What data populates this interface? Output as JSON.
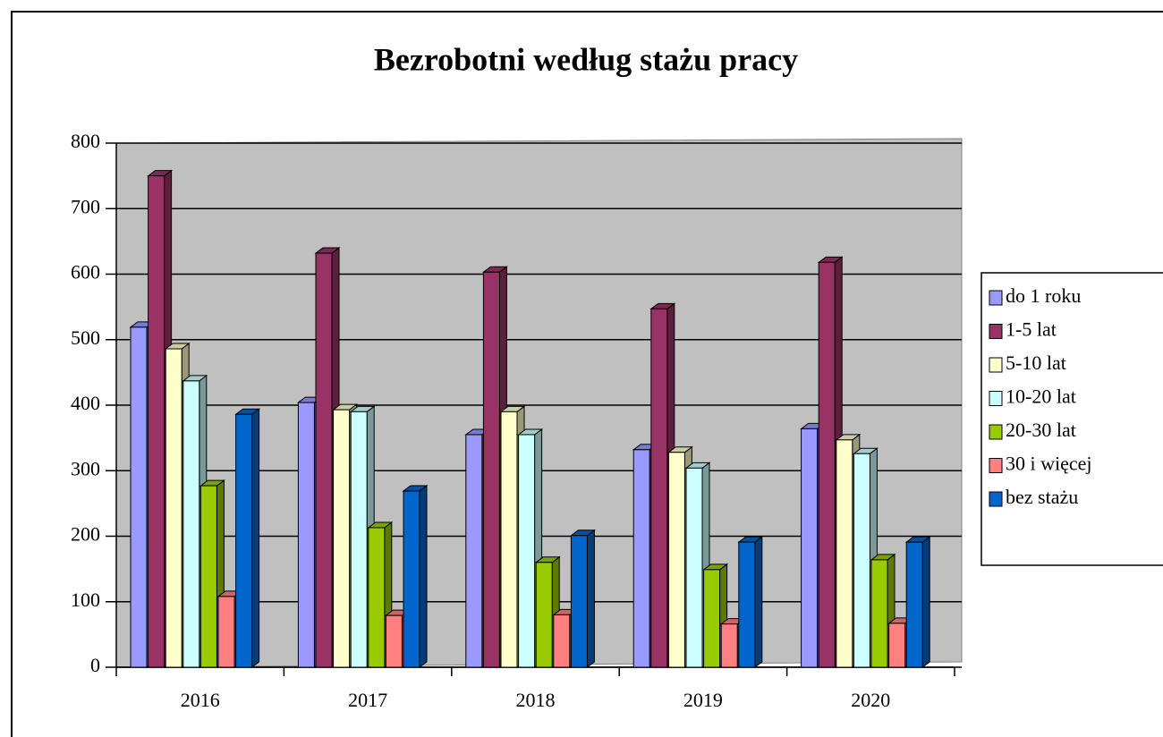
{
  "chart_data": {
    "type": "bar3d",
    "title": "Bezrobotni według stażu pracy",
    "categories": [
      "2016",
      "2017",
      "2018",
      "2019",
      "2020"
    ],
    "series": [
      {
        "name": "do 1 roku",
        "color": "#9999ff",
        "values": [
          519,
          404,
          355,
          332,
          364
        ]
      },
      {
        "name": "1-5 lat",
        "color": "#993366",
        "values": [
          750,
          632,
          603,
          547,
          618
        ]
      },
      {
        "name": "5-10 lat",
        "color": "#ffffcc",
        "values": [
          486,
          393,
          390,
          328,
          347
        ]
      },
      {
        "name": "10-20 lat",
        "color": "#ccffff",
        "values": [
          437,
          390,
          355,
          304,
          326
        ]
      },
      {
        "name": "20-30 lat",
        "color": "#99cc00",
        "values": [
          277,
          213,
          160,
          149,
          164
        ]
      },
      {
        "name": "30 i więcej",
        "color": "#ff8080",
        "values": [
          108,
          79,
          80,
          66,
          67
        ]
      },
      {
        "name": "bez stażu",
        "color": "#0066cc",
        "values": [
          386,
          269,
          201,
          191,
          191
        ]
      }
    ],
    "ylim": [
      0,
      800
    ],
    "yticks": [
      0,
      100,
      200,
      300,
      400,
      500,
      600,
      700,
      800
    ],
    "grid": true,
    "legend": "right"
  }
}
